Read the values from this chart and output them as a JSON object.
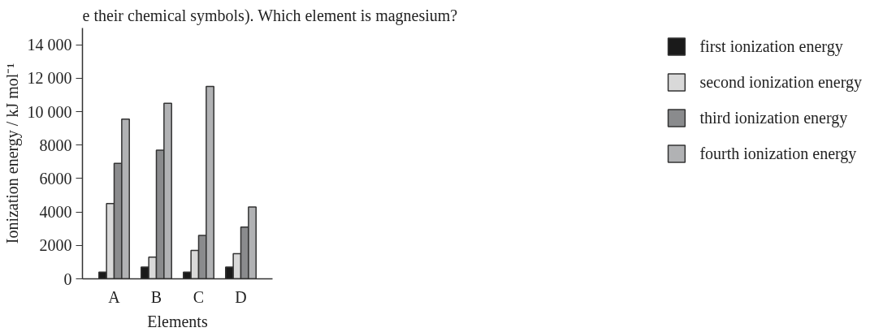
{
  "chart_data": {
    "type": "bar",
    "annotations": [
      "e their chemical symbols). Which element is magnesium?"
    ],
    "xlabel": "Elements",
    "ylabel": "Ionization energy / kJ mol⁻¹",
    "categories": [
      "A",
      "B",
      "C",
      "D"
    ],
    "series": [
      {
        "name": "first ionization energy",
        "color": "#1a1a1a",
        "values": [
          400,
          700,
          400,
          700
        ]
      },
      {
        "name": "second ionization energy",
        "color": "#d9d9d9",
        "values": [
          4500,
          1300,
          1700,
          1500
        ]
      },
      {
        "name": "third ionization energy",
        "color": "#8a8b8d",
        "values": [
          6900,
          7700,
          2600,
          3100
        ]
      },
      {
        "name": "fourth ionization energy",
        "color": "#b1b2b4",
        "values": [
          9550,
          10500,
          11500,
          4300
        ]
      }
    ],
    "ylim": [
      0,
      15000
    ],
    "yticks": [
      0,
      {
        "value": 2000,
        "label": "2000"
      },
      {
        "value": 4000,
        "label": "4000"
      },
      {
        "value": 6000,
        "label": "6000"
      },
      {
        "value": 8000,
        "label": "8000"
      },
      {
        "value": 10000,
        "label": "10 000"
      },
      {
        "value": 12000,
        "label": "12 000"
      },
      {
        "value": 14000,
        "label": "14 000"
      }
    ],
    "grid": false,
    "legend": "right"
  }
}
